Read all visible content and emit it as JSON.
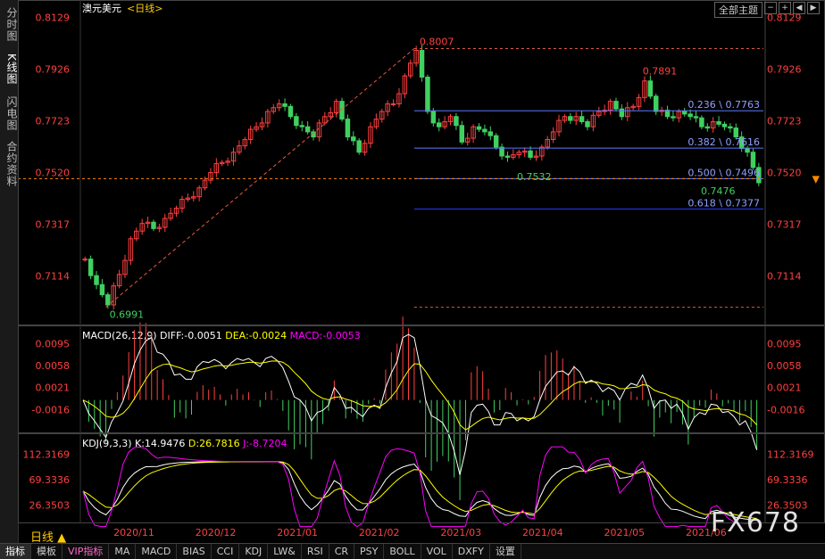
{
  "left_tabs": [
    "分时图",
    "K线图",
    "闪电图",
    "合约资料"
  ],
  "header": {
    "symbol": "澳元美元",
    "period_tag": "<日线>",
    "theme_button": "全部主题"
  },
  "period_label": "日线",
  "watermark": "FX678",
  "toolbar": [
    "指标",
    "模板",
    "VIP指标",
    "MA",
    "MACD",
    "BIAS",
    "CCI",
    "KDJ",
    "LW&",
    "RSI",
    "CR",
    "PSY",
    "BOLL",
    "VOL",
    "DXFY",
    "设置"
  ],
  "colors": {
    "up": "#ff4040",
    "down": "#40d060",
    "fib": "#5a78ff",
    "marker": "#ff8a00",
    "macd_diff": "#ffffff",
    "macd_dea": "#ffff00",
    "macd_hist": "#ff00ff"
  },
  "chart_data": [
    {
      "type": "candlestick",
      "title": "澳元美元<日线>",
      "y_ticks": [
        "0.8129",
        "0.7926",
        "0.7723",
        "0.7520",
        "0.7317",
        "0.7114"
      ],
      "ylim": [
        0.693,
        0.817
      ],
      "x_ticks": [
        "2020/11",
        "2020/12",
        "2021/01",
        "2021/02",
        "2021/03",
        "2021/04",
        "2021/05",
        "2021/06"
      ],
      "current_price": 0.7496,
      "annotations": [
        {
          "label": "0.8007",
          "value": 0.8007
        },
        {
          "label": "0.7891",
          "value": 0.7891
        },
        {
          "label": "0.7532",
          "value": 0.7532
        },
        {
          "label": "0.7476",
          "value": 0.7476
        },
        {
          "label": "0.6991",
          "value": 0.6991
        }
      ],
      "fibonacci": [
        {
          "label": "0.236 \\ 0.7763",
          "value": 0.7763
        },
        {
          "label": "0.382 \\ 0.7616",
          "value": 0.7616
        },
        {
          "label": "0.500 \\ 0.7496",
          "value": 0.7496
        },
        {
          "label": "0.618 \\ 0.7377",
          "value": 0.7377
        }
      ],
      "close_path": [
        0.718,
        0.708,
        0.7,
        0.712,
        0.726,
        0.732,
        0.73,
        0.734,
        0.738,
        0.742,
        0.746,
        0.752,
        0.756,
        0.76,
        0.765,
        0.77,
        0.776,
        0.779,
        0.774,
        0.77,
        0.766,
        0.774,
        0.78,
        0.766,
        0.76,
        0.77,
        0.776,
        0.779,
        0.79,
        0.8,
        0.776,
        0.77,
        0.774,
        0.764,
        0.77,
        0.768,
        0.762,
        0.758,
        0.76,
        0.758,
        0.762,
        0.768,
        0.774,
        0.774,
        0.77,
        0.776,
        0.78,
        0.774,
        0.778,
        0.788,
        0.776,
        0.774,
        0.776,
        0.774,
        0.77,
        0.772,
        0.77,
        0.766,
        0.76,
        0.748
      ]
    },
    {
      "type": "line",
      "title": "MACD(26,12,9)",
      "series": [
        {
          "name": "DIFF",
          "value": "-0.0051"
        },
        {
          "name": "DEA",
          "value": "-0.0024"
        },
        {
          "name": "MACD",
          "value": "-0.0053"
        }
      ],
      "y_ticks": [
        "0.0095",
        "0.0058",
        "0.0021",
        "-0.0016"
      ],
      "ylim": [
        -0.005,
        0.0115
      ]
    },
    {
      "type": "line",
      "title": "KDJ(9,3,3)",
      "series": [
        {
          "name": "K",
          "value": "14.9476"
        },
        {
          "name": "D",
          "value": "26.7816"
        },
        {
          "name": "J",
          "value": "-8.7204"
        }
      ],
      "y_ticks": [
        "112.3169",
        "69.3336",
        "26.3503"
      ],
      "ylim": [
        0,
        130
      ]
    }
  ]
}
